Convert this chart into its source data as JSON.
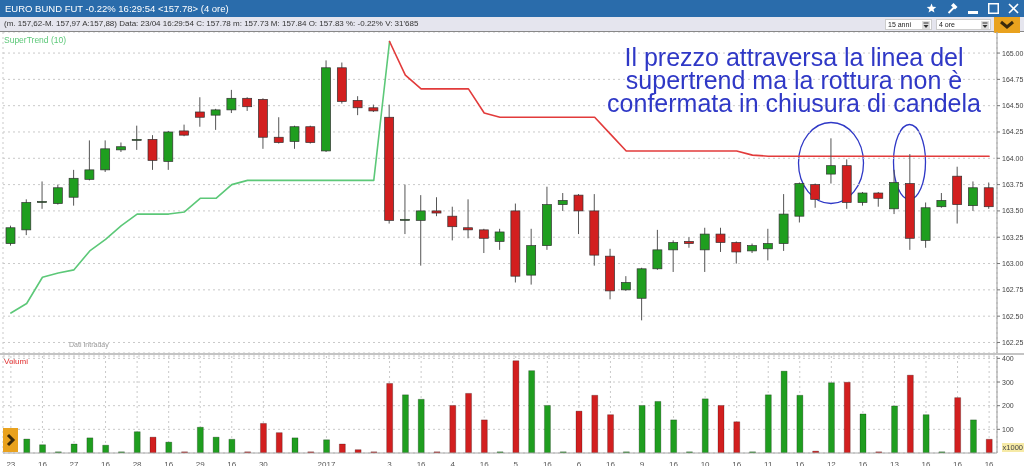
{
  "chart_data": [
    {
      "type": "candlestick",
      "title": "EURO BUND FUT -0.22% 16:29:54 <157.78> (4 ore)",
      "subtitle": "(m. 157,62-M. 157,97 A:157,88) Data: 23/04 16:29:54 C: 157.78 m: 157.73 M: 157.84 O: 157.83 %: -0.22% V: 31'685",
      "annotations": [
        "Il prezzo attraversa la linea del\nsupertrend ma la rottura non è\nconfermata in chiusura di candela",
        "Dati Intraday",
        "15 anni",
        "4 ore"
      ],
      "categories": [
        "23",
        null,
        "16",
        null,
        "27",
        null,
        "16",
        null,
        "28",
        null,
        "16",
        null,
        "29",
        null,
        "16",
        null,
        "30",
        null,
        null,
        null,
        "2017",
        null,
        null,
        null,
        "3",
        null,
        "16",
        null,
        "4",
        null,
        "16",
        null,
        "5",
        null,
        "16",
        null,
        "6",
        null,
        "16",
        null,
        "9",
        null,
        "16",
        null,
        "10",
        null,
        "16",
        null,
        "11",
        null,
        "16",
        null,
        "12",
        null,
        "16",
        null,
        "13",
        null,
        "16",
        null,
        "16",
        null,
        "16"
      ],
      "ohlc": [
        [
          163.19,
          163.36,
          163.17,
          163.34
        ],
        [
          163.32,
          163.61,
          163.27,
          163.58
        ],
        [
          163.58,
          163.78,
          163.52,
          163.59
        ],
        [
          163.57,
          163.75,
          163.56,
          163.72
        ],
        [
          163.63,
          163.89,
          163.55,
          163.81
        ],
        [
          163.8,
          164.17,
          163.79,
          163.89
        ],
        [
          163.89,
          164.17,
          163.87,
          164.09
        ],
        [
          164.08,
          164.15,
          164.06,
          164.11
        ],
        [
          164.17,
          164.31,
          164.08,
          164.18
        ],
        [
          164.18,
          164.22,
          163.89,
          163.98
        ],
        [
          163.97,
          164.26,
          163.89,
          164.25
        ],
        [
          164.26,
          164.32,
          164.21,
          164.22
        ],
        [
          164.44,
          164.58,
          164.3,
          164.39
        ],
        [
          164.41,
          164.47,
          164.27,
          164.46
        ],
        [
          164.46,
          164.65,
          164.43,
          164.57
        ],
        [
          164.57,
          164.58,
          164.45,
          164.49
        ],
        [
          164.56,
          164.57,
          164.09,
          164.2
        ],
        [
          164.2,
          164.39,
          164.14,
          164.15
        ],
        [
          164.16,
          164.31,
          164.09,
          164.3
        ],
        [
          164.3,
          164.31,
          164.14,
          164.15
        ],
        [
          164.07,
          164.93,
          164.06,
          164.86
        ],
        [
          164.86,
          164.91,
          164.52,
          164.54
        ],
        [
          164.55,
          164.59,
          164.41,
          164.48
        ],
        [
          164.48,
          164.51,
          164.44,
          164.45
        ],
        [
          164.39,
          164.51,
          163.38,
          163.41
        ],
        [
          163.41,
          163.75,
          163.28,
          163.42
        ],
        [
          163.41,
          163.65,
          162.98,
          163.5
        ],
        [
          163.5,
          163.63,
          163.45,
          163.48
        ],
        [
          163.45,
          163.54,
          163.22,
          163.35
        ],
        [
          163.34,
          163.61,
          163.24,
          163.32
        ],
        [
          163.32,
          163.33,
          163.1,
          163.24
        ],
        [
          163.21,
          163.33,
          163.13,
          163.3
        ],
        [
          163.5,
          163.57,
          162.82,
          162.88
        ],
        [
          162.89,
          163.33,
          162.8,
          163.17
        ],
        [
          163.17,
          163.73,
          163.13,
          163.56
        ],
        [
          163.56,
          163.67,
          163.5,
          163.6
        ],
        [
          163.65,
          163.66,
          163.28,
          163.5
        ],
        [
          163.5,
          163.66,
          162.98,
          163.08
        ],
        [
          163.07,
          163.14,
          162.66,
          162.74
        ],
        [
          162.75,
          162.88,
          162.74,
          162.82
        ],
        [
          162.67,
          162.96,
          162.46,
          162.95
        ],
        [
          162.95,
          163.32,
          162.94,
          163.13
        ],
        [
          163.13,
          163.22,
          162.92,
          163.2
        ],
        [
          163.21,
          163.25,
          163.15,
          163.19
        ],
        [
          163.13,
          163.34,
          162.92,
          163.28
        ],
        [
          163.28,
          163.34,
          163.11,
          163.2
        ],
        [
          163.2,
          163.21,
          163.0,
          163.11
        ],
        [
          163.12,
          163.19,
          163.1,
          163.17
        ],
        [
          163.14,
          163.33,
          163.03,
          163.19
        ],
        [
          163.19,
          163.66,
          163.12,
          163.47
        ],
        [
          163.45,
          163.77,
          163.39,
          163.76
        ],
        [
          163.75,
          163.76,
          163.53,
          163.61
        ],
        [
          163.85,
          164.19,
          163.76,
          163.93
        ],
        [
          163.93,
          163.99,
          163.52,
          163.58
        ],
        [
          163.58,
          163.68,
          163.55,
          163.67
        ],
        [
          163.67,
          163.68,
          163.54,
          163.62
        ],
        [
          163.52,
          163.89,
          163.47,
          163.77
        ],
        [
          163.76,
          164.04,
          163.13,
          163.24
        ],
        [
          163.22,
          163.58,
          163.15,
          163.53
        ],
        [
          163.54,
          163.67,
          163.53,
          163.6
        ],
        [
          163.83,
          163.92,
          163.38,
          163.56
        ],
        [
          163.55,
          163.78,
          163.5,
          163.72
        ],
        [
          163.72,
          163.77,
          163.52,
          163.54
        ]
      ],
      "colors": [
        "#1f9e1f",
        "#1f9e1f",
        "#1f9e1f",
        "#1f9e1f",
        "#1f9e1f",
        "#1f9e1f",
        "#1f9e1f",
        "#1f9e1f",
        "#1f9e1f",
        "#d21f1f",
        "#1f9e1f",
        "#d21f1f",
        "#d21f1f",
        "#1f9e1f",
        "#1f9e1f",
        "#d21f1f",
        "#d21f1f",
        "#d21f1f",
        "#1f9e1f",
        "#d21f1f",
        "#1f9e1f",
        "#d21f1f",
        "#d21f1f",
        "#d21f1f",
        "#d21f1f",
        "#1f9e1f",
        "#1f9e1f",
        "#d21f1f",
        "#d21f1f",
        "#d21f1f",
        "#d21f1f",
        "#1f9e1f",
        "#d21f1f",
        "#1f9e1f",
        "#1f9e1f",
        "#1f9e1f",
        "#d21f1f",
        "#d21f1f",
        "#d21f1f",
        "#1f9e1f",
        "#1f9e1f",
        "#1f9e1f",
        "#1f9e1f",
        "#d21f1f",
        "#1f9e1f",
        "#d21f1f",
        "#d21f1f",
        "#1f9e1f",
        "#1f9e1f",
        "#1f9e1f",
        "#1f9e1f",
        "#d21f1f",
        "#1f9e1f",
        "#d21f1f",
        "#1f9e1f",
        "#d21f1f",
        "#1f9e1f",
        "#d21f1f",
        "#1f9e1f",
        "#1f9e1f",
        "#d21f1f",
        "#1f9e1f",
        "#d21f1f"
      ],
      "series": [
        {
          "type": "line",
          "name": "SuperTrend (10)",
          "color": "#5cc878",
          "values": [
            162.53,
            162.62,
            162.87,
            162.91,
            162.94,
            163.12,
            163.23,
            163.36,
            163.47,
            163.47,
            163.47,
            163.49,
            163.62,
            163.62,
            163.75,
            163.79,
            163.79,
            163.79,
            163.79,
            163.79,
            163.79,
            163.79,
            163.79,
            163.79,
            165.11,
            null,
            null,
            null,
            null,
            null,
            null,
            null,
            null,
            null,
            null,
            null,
            null,
            null,
            null,
            null,
            null,
            null,
            null,
            null,
            null,
            null,
            null,
            null,
            null,
            null,
            null,
            null,
            null,
            null,
            null,
            null,
            null,
            null,
            null,
            null,
            null,
            null,
            null
          ]
        },
        {
          "type": "line",
          "color": "#e23b3b",
          "values": [
            null,
            null,
            null,
            null,
            null,
            null,
            null,
            null,
            null,
            null,
            null,
            null,
            null,
            null,
            null,
            null,
            null,
            null,
            null,
            null,
            null,
            null,
            null,
            null,
            165.11,
            164.79,
            164.66,
            164.66,
            164.66,
            164.66,
            164.43,
            164.39,
            164.39,
            164.39,
            164.39,
            164.39,
            164.39,
            164.39,
            164.23,
            164.07,
            164.07,
            164.07,
            164.07,
            164.07,
            164.07,
            164.07,
            164.07,
            164.03,
            164.02,
            164.02,
            164.02,
            164.02,
            164.02,
            164.02,
            164.02,
            164.02,
            164.02,
            164.02,
            164.02,
            164.02,
            164.02,
            164.02,
            164.02
          ]
        }
      ],
      "ylim": [
        162.15,
        165.2
      ],
      "yticks": [
        {
          "value": 162.25,
          "label": "162.25"
        },
        {
          "value": 162.5,
          "label": "162.50"
        },
        {
          "value": 162.75,
          "label": "162.75"
        },
        {
          "value": 163,
          "label": "163.00"
        },
        {
          "value": 163.25,
          "label": "163.25"
        },
        {
          "value": 163.5,
          "label": "163.50"
        },
        {
          "value": 163.75,
          "label": "163.75"
        },
        {
          "value": 164,
          "label": "164.00"
        },
        {
          "value": 164.25,
          "label": "164.25"
        },
        {
          "value": 164.5,
          "label": "164.50"
        },
        {
          "value": 164.75,
          "label": "164.75"
        },
        {
          "value": 165,
          "label": "165.00"
        }
      ],
      "grid": true,
      "legend": "top left",
      "tick_labels": "y"
    },
    {
      "type": "bar",
      "title": "Volumi",
      "ylabel": "x1000",
      "categories": [
        "23",
        null,
        "16",
        null,
        "27",
        null,
        "16",
        null,
        "28",
        null,
        "16",
        null,
        "29",
        null,
        "16",
        null,
        "30",
        null,
        null,
        null,
        "2017",
        null,
        null,
        null,
        "3",
        null,
        "16",
        null,
        "4",
        null,
        "16",
        null,
        "5",
        null,
        "16",
        null,
        "6",
        null,
        "16",
        null,
        "9",
        null,
        "16",
        null,
        "10",
        null,
        "16",
        null,
        "11",
        null,
        "16",
        null,
        "12",
        null,
        "16",
        null,
        "13",
        null,
        "16",
        null,
        "16",
        null,
        "16"
      ],
      "values": [
        null,
        59,
        35,
        5,
        38,
        64,
        33,
        5,
        90,
        67,
        46,
        5,
        109,
        67,
        58,
        5,
        125,
        86,
        64,
        5,
        56,
        38,
        14,
        5,
        294,
        246,
        227,
        5,
        201,
        252,
        140,
        5,
        390,
        348,
        201,
        5,
        177,
        244,
        162,
        5,
        201,
        218,
        140,
        5,
        229,
        201,
        132,
        5,
        246,
        346,
        244,
        8,
        297,
        299,
        165,
        5,
        199,
        329,
        162,
        5,
        234,
        140,
        58
      ],
      "colors": [
        "#1f9e1f",
        "#1f9e1f",
        "#1f9e1f",
        "#1f9e1f",
        "#1f9e1f",
        "#1f9e1f",
        "#1f9e1f",
        "#1f9e1f",
        "#1f9e1f",
        "#d21f1f",
        "#1f9e1f",
        "#d21f1f",
        "#1f9e1f",
        "#1f9e1f",
        "#1f9e1f",
        "#d21f1f",
        "#d21f1f",
        "#d21f1f",
        "#1f9e1f",
        "#d21f1f",
        "#1f9e1f",
        "#d21f1f",
        "#d21f1f",
        "#d21f1f",
        "#d21f1f",
        "#1f9e1f",
        "#1f9e1f",
        "#d21f1f",
        "#d21f1f",
        "#d21f1f",
        "#d21f1f",
        "#1f9e1f",
        "#d21f1f",
        "#1f9e1f",
        "#1f9e1f",
        "#1f9e1f",
        "#d21f1f",
        "#d21f1f",
        "#d21f1f",
        "#1f9e1f",
        "#1f9e1f",
        "#1f9e1f",
        "#1f9e1f",
        "#1f9e1f",
        "#1f9e1f",
        "#d21f1f",
        "#d21f1f",
        "#1f9e1f",
        "#1f9e1f",
        "#1f9e1f",
        "#1f9e1f",
        "#d21f1f",
        "#1f9e1f",
        "#d21f1f",
        "#1f9e1f",
        "#d21f1f",
        "#1f9e1f",
        "#d21f1f",
        "#1f9e1f",
        "#1f9e1f",
        "#d21f1f",
        "#1f9e1f",
        "#d21f1f"
      ],
      "ylim": [
        0,
        410
      ],
      "yticks": [
        100,
        200,
        300,
        400
      ],
      "grid": true
    }
  ]
}
